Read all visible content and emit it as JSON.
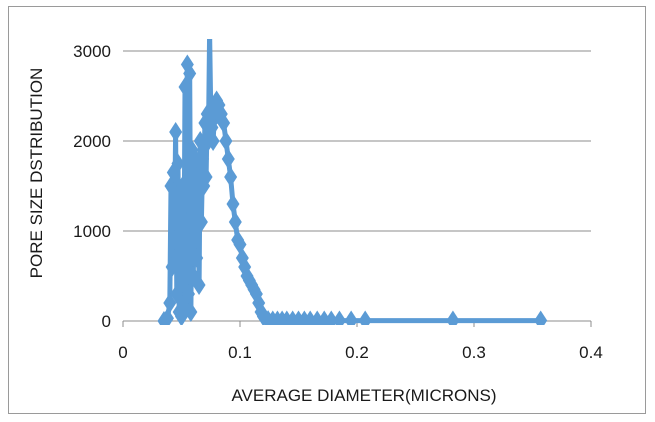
{
  "chart_data": {
    "type": "scatter",
    "title": "",
    "xlabel": "AVERAGE DIAMETER(MICRONS)",
    "ylabel": "PORE SIZE DSTRIBUTION",
    "xlim": [
      0,
      0.4
    ],
    "ylim": [
      0,
      3000
    ],
    "xticks": [
      "0",
      "0.1",
      "0.2",
      "0.3",
      "0.4"
    ],
    "yticks": [
      "0",
      "1000",
      "2000",
      "3000"
    ],
    "grid": "horizontal",
    "legend": "none",
    "marker": "diamond",
    "connected": true,
    "color": "#5b9bd5",
    "series": [
      {
        "x": [
          0.035,
          0.038,
          0.04,
          0.041,
          0.042,
          0.043,
          0.044,
          0.045,
          0.046,
          0.047,
          0.048,
          0.049,
          0.05,
          0.051,
          0.052,
          0.053,
          0.054,
          0.055,
          0.056,
          0.057,
          0.058,
          0.059,
          0.06,
          0.061,
          0.062,
          0.063,
          0.064,
          0.065,
          0.066,
          0.067,
          0.068,
          0.069,
          0.07,
          0.071,
          0.072,
          0.073,
          0.074,
          0.075,
          0.076,
          0.077,
          0.078,
          0.079,
          0.08,
          0.082,
          0.084,
          0.086,
          0.088,
          0.09,
          0.092,
          0.094,
          0.096,
          0.098,
          0.1,
          0.102,
          0.104,
          0.106,
          0.108,
          0.11,
          0.112,
          0.114,
          0.116,
          0.118,
          0.12,
          0.124,
          0.128,
          0.132,
          0.136,
          0.14,
          0.145,
          0.15,
          0.155,
          0.16,
          0.166,
          0.172,
          0.178,
          0.185,
          0.195,
          0.207,
          0.282,
          0.357
        ],
        "y": [
          0,
          30,
          200,
          1500,
          600,
          1650,
          900,
          2100,
          300,
          1750,
          100,
          1200,
          50,
          1500,
          200,
          2600,
          150,
          2850,
          300,
          2750,
          100,
          1900,
          500,
          1000,
          1800,
          700,
          1600,
          400,
          2000,
          1100,
          1800,
          1500,
          2200,
          1600,
          2300,
          2000,
          3200,
          2300,
          2150,
          2000,
          2250,
          2350,
          2450,
          2400,
          2300,
          2200,
          2000,
          1800,
          1600,
          1300,
          1100,
          900,
          850,
          700,
          600,
          500,
          450,
          400,
          350,
          300,
          200,
          100,
          50,
          10,
          5,
          5,
          5,
          5,
          5,
          5,
          5,
          5,
          5,
          5,
          5,
          5,
          5,
          5,
          5,
          5
        ]
      }
    ]
  }
}
